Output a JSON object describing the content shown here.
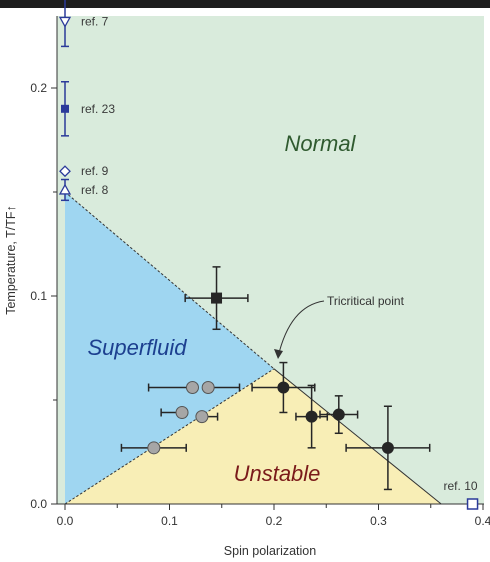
{
  "chart_data": {
    "type": "scatter",
    "xlabel": "Spin polarization",
    "ylabel": "Temperature, T/TF↑",
    "xlim": [
      0,
      0.4
    ],
    "ylim": [
      0,
      0.235
    ],
    "x_ticks": [
      "0.0",
      "0.1",
      "0.2",
      "0.3",
      "0.4"
    ],
    "y_ticks": [
      "0.0",
      "0.1",
      "0.2"
    ],
    "regions": [
      {
        "label": "Normal",
        "color": "#2f5a2f",
        "fill": "#d9ebdc"
      },
      {
        "label": "Superfluid",
        "color": "#1c3f8f",
        "fill": "#9fd6f1"
      },
      {
        "label": "Unstable",
        "color": "#7a1a1a",
        "fill": "#f8eeb6"
      }
    ],
    "tricritical_point": {
      "x": 0.2,
      "y": 0.065,
      "label": "Tricritical point"
    },
    "boundaries": {
      "superfluid_normal": [
        [
          0,
          0.15
        ],
        [
          0.2,
          0.065
        ]
      ],
      "unstable_lower": [
        [
          0,
          0
        ],
        [
          0.2,
          0.065
        ]
      ],
      "unstable_right": [
        [
          0.2,
          0.065
        ],
        [
          0.36,
          0
        ]
      ]
    },
    "series": [
      {
        "marker": "circle-gray",
        "points": [
          {
            "x": 0.122,
            "y": 0.056,
            "xerr_lo": 0.042,
            "xerr_hi": 0.0
          },
          {
            "x": 0.137,
            "y": 0.056,
            "xerr_lo": 0.0,
            "xerr_hi": 0.03
          },
          {
            "x": 0.112,
            "y": 0.044,
            "xerr_lo": 0.02,
            "xerr_hi": 0.0
          },
          {
            "x": 0.131,
            "y": 0.042,
            "xerr_lo": 0.0,
            "xerr_hi": 0.015
          },
          {
            "x": 0.085,
            "y": 0.027,
            "xerr_lo": 0.031,
            "xerr_hi": 0.031
          }
        ]
      },
      {
        "marker": "circle-black",
        "points": [
          {
            "x": 0.209,
            "y": 0.056,
            "xerr": 0.03,
            "yerr": 0.012
          },
          {
            "x": 0.236,
            "y": 0.042,
            "xerr": 0.015,
            "yerr": 0.015
          },
          {
            "x": 0.262,
            "y": 0.043,
            "xerr": 0.018,
            "yerr": 0.009
          },
          {
            "x": 0.309,
            "y": 0.027,
            "xerr": 0.04,
            "yerr": 0.02
          }
        ]
      },
      {
        "marker": "square-black",
        "points": [
          {
            "x": 0.145,
            "y": 0.099,
            "xerr": 0.03,
            "yerr": 0.015
          }
        ]
      }
    ],
    "references": [
      {
        "label": "ref. 7",
        "marker": "triangle-down-open",
        "x": 0.0,
        "y": 0.232,
        "yerr": 0.012
      },
      {
        "label": "ref. 23",
        "marker": "square-filled",
        "x": 0.0,
        "y": 0.19,
        "yerr": 0.013
      },
      {
        "label": "ref. 9",
        "marker": "diamond-open",
        "x": 0.0,
        "y": 0.16
      },
      {
        "label": "ref. 8",
        "marker": "triangle-up-open",
        "x": 0.0,
        "y": 0.151,
        "yerr": 0.005
      },
      {
        "label": "ref. 10",
        "marker": "square-open",
        "x": 0.39,
        "y": 0.0
      }
    ],
    "colors": {
      "ref_marker": "#2b3a9a",
      "gray_marker": "#a6a6a6",
      "black_marker": "#262626"
    }
  }
}
